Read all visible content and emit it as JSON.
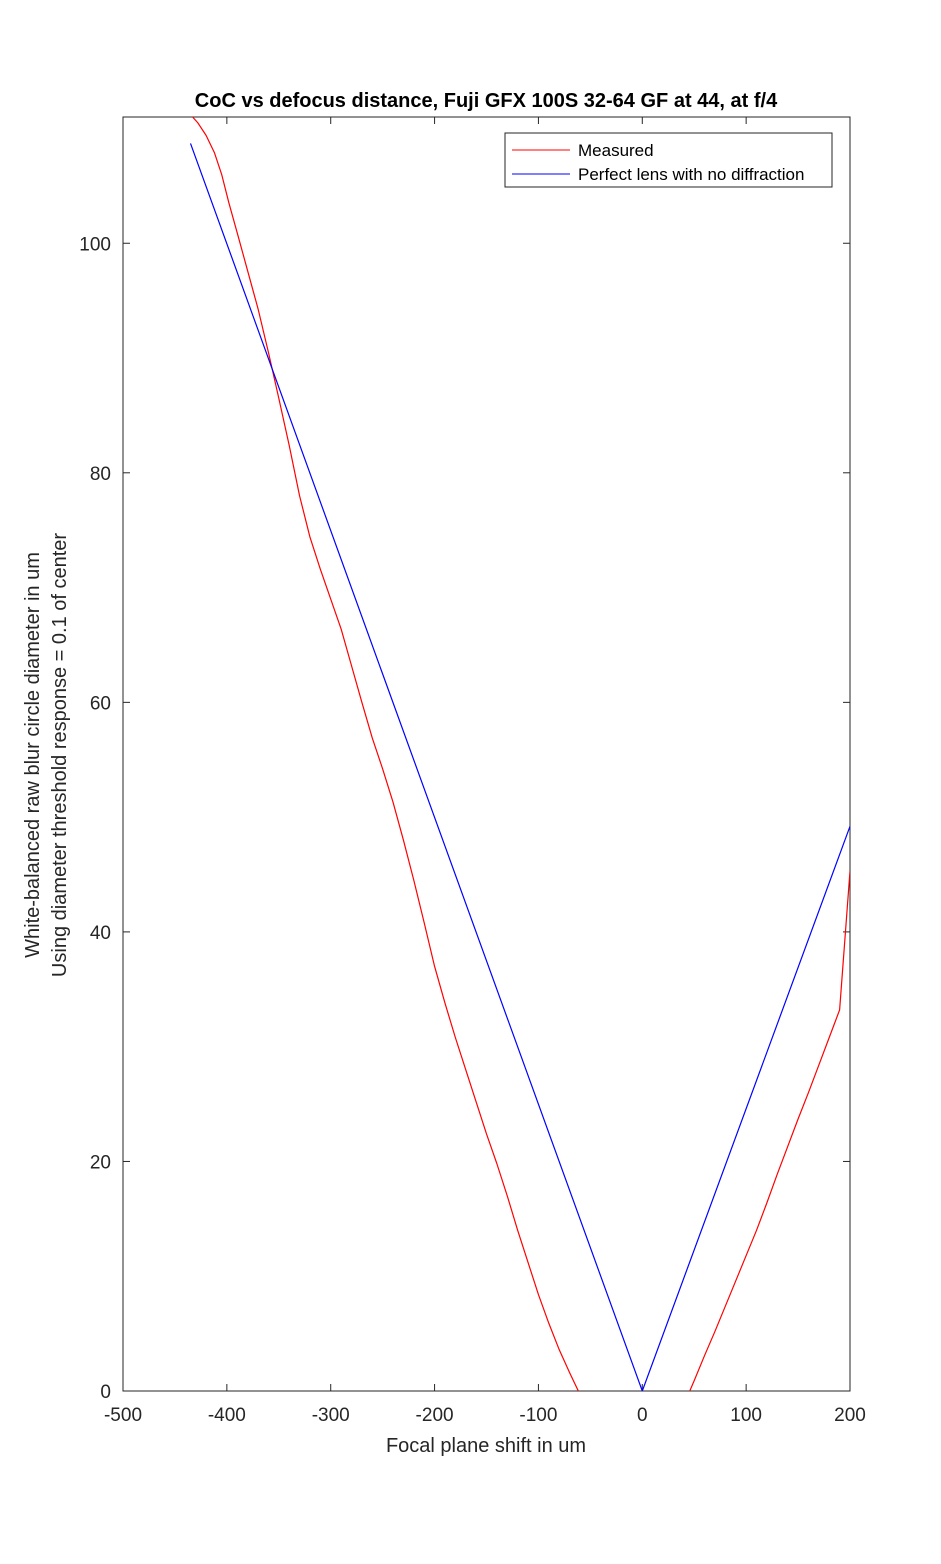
{
  "chart_data": {
    "type": "line",
    "title": "CoC vs defocus distance, Fuji GFX 100S 32-64 GF at 44, at f/4",
    "xlabel": "Focal plane shift in um",
    "ylabel": [
      "White-balanced raw blur circle diameter in um",
      "Using diameter threshold response = 0.1 of center"
    ],
    "xlim": [
      -500,
      200
    ],
    "ylim": [
      0,
      111
    ],
    "xticks": [
      -500,
      -400,
      -300,
      -200,
      -100,
      0,
      100,
      200
    ],
    "yticks": [
      0,
      20,
      40,
      60,
      80,
      100
    ],
    "grid": false,
    "legend_position": "top-right",
    "series": [
      {
        "name": "Measured",
        "color": "#ff0000",
        "points": [
          [
            -435,
            111.2
          ],
          [
            -428,
            110.5
          ],
          [
            -420,
            109.4
          ],
          [
            -412,
            107.9
          ],
          [
            -405,
            106.0
          ],
          [
            -398,
            103.5
          ],
          [
            -390,
            100.9
          ],
          [
            -380,
            97.6
          ],
          [
            -370,
            94.3
          ],
          [
            -360,
            90.5
          ],
          [
            -350,
            86.5
          ],
          [
            -340,
            82.4
          ],
          [
            -330,
            78.0
          ],
          [
            -320,
            74.4
          ],
          [
            -310,
            71.6
          ],
          [
            -300,
            69.0
          ],
          [
            -290,
            66.4
          ],
          [
            -280,
            63.2
          ],
          [
            -270,
            60.0
          ],
          [
            -260,
            56.9
          ],
          [
            -250,
            54.2
          ],
          [
            -240,
            51.3
          ],
          [
            -230,
            48.0
          ],
          [
            -220,
            44.5
          ],
          [
            -210,
            40.8
          ],
          [
            -200,
            37.0
          ],
          [
            -190,
            33.8
          ],
          [
            -180,
            30.8
          ],
          [
            -170,
            28.0
          ],
          [
            -160,
            25.2
          ],
          [
            -150,
            22.4
          ],
          [
            -140,
            19.8
          ],
          [
            -130,
            17.0
          ],
          [
            -120,
            14.0
          ],
          [
            -110,
            11.2
          ],
          [
            -100,
            8.4
          ],
          [
            -90,
            5.9
          ],
          [
            -80,
            3.6
          ],
          [
            -70,
            1.6
          ],
          [
            -60,
            -0.3
          ],
          [
            -50,
            -1.9
          ],
          [
            -40,
            -3.3
          ],
          [
            -30,
            -4.6
          ],
          [
            -20,
            -5.5
          ],
          [
            -10,
            -6.0
          ],
          [
            0,
            -6.1
          ],
          [
            10,
            -5.6
          ],
          [
            20,
            -4.6
          ],
          [
            30,
            -3.1
          ],
          [
            40,
            -1.2
          ],
          [
            50,
            0.9
          ],
          [
            60,
            3.1
          ],
          [
            70,
            5.2
          ],
          [
            80,
            7.4
          ],
          [
            90,
            9.6
          ],
          [
            100,
            11.8
          ],
          [
            110,
            14.0
          ],
          [
            120,
            16.4
          ],
          [
            130,
            18.9
          ],
          [
            140,
            21.3
          ],
          [
            150,
            23.7
          ],
          [
            160,
            26.0
          ],
          [
            170,
            28.4
          ],
          [
            180,
            30.8
          ],
          [
            190,
            33.2
          ],
          [
            200,
            45.3
          ]
        ]
      },
      {
        "name": "Perfect lens with no diffraction",
        "color": "#0000ff",
        "points": [
          [
            -435,
            108.7
          ],
          [
            0,
            0
          ],
          [
            200,
            49.2
          ]
        ]
      }
    ]
  }
}
